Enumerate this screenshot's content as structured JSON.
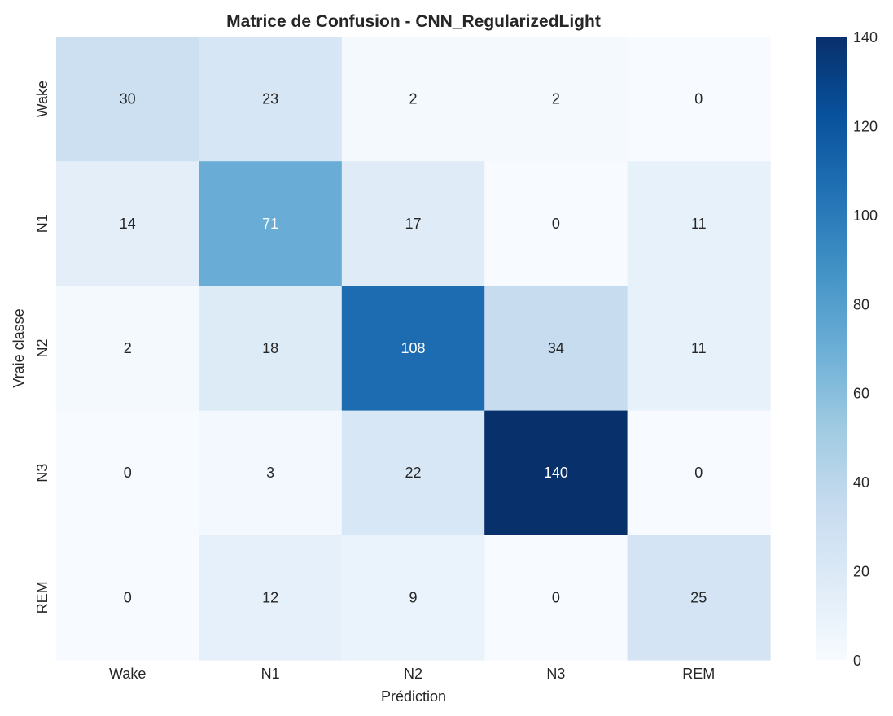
{
  "chart_data": {
    "type": "heatmap",
    "title": "Matrice de Confusion - CNN_RegularizedLight",
    "xlabel": "Prédiction",
    "ylabel": "Vraie classe",
    "x_categories": [
      "Wake",
      "N1",
      "N2",
      "N3",
      "REM"
    ],
    "y_categories": [
      "Wake",
      "N1",
      "N2",
      "N3",
      "REM"
    ],
    "values": [
      [
        30,
        23,
        2,
        2,
        0
      ],
      [
        14,
        71,
        17,
        0,
        11
      ],
      [
        2,
        18,
        108,
        34,
        11
      ],
      [
        0,
        3,
        22,
        140,
        0
      ],
      [
        0,
        12,
        9,
        0,
        25
      ]
    ],
    "colormap": "Blues",
    "colorbar": {
      "min": 0,
      "max": 140,
      "ticks": [
        0,
        20,
        40,
        60,
        80,
        100,
        120,
        140
      ]
    },
    "colors": {
      "low": "#f7fbff",
      "high": "#08306b",
      "annotation_dark": "#262626",
      "annotation_light": "#ffffff"
    }
  }
}
